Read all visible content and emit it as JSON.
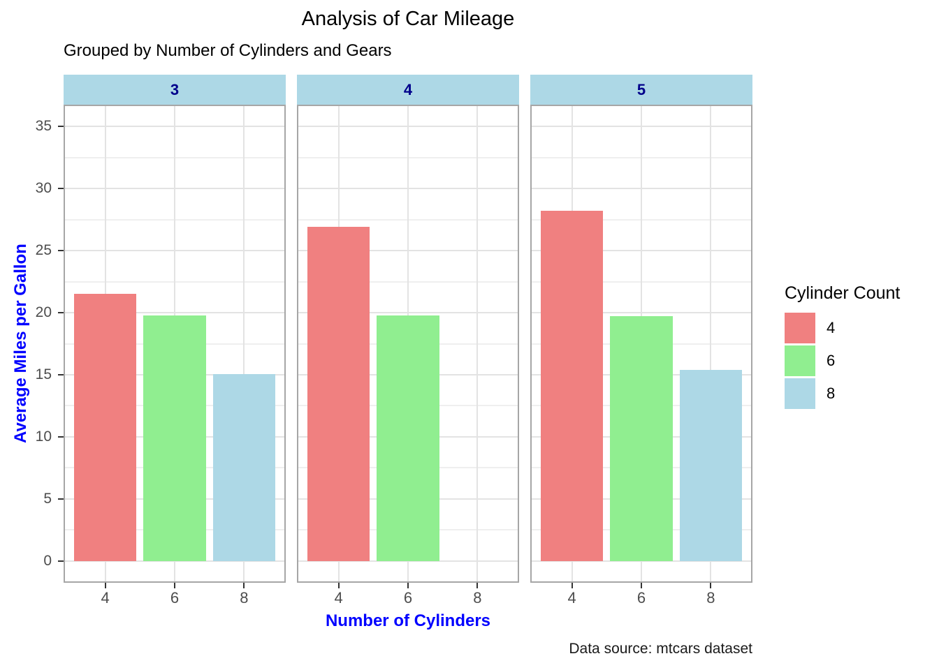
{
  "chart_data": {
    "type": "bar",
    "title": "Analysis of Car Mileage",
    "subtitle": "Grouped by Number of Cylinders and Gears",
    "caption": "Data source: mtcars dataset",
    "xlabel": "Number of Cylinders",
    "ylabel": "Average Miles per Gallon",
    "facet_labels": [
      "3",
      "4",
      "5"
    ],
    "categories": [
      "4",
      "6",
      "8"
    ],
    "series": [
      {
        "facet": "3",
        "values": [
          21.5,
          19.75,
          15.05
        ]
      },
      {
        "facet": "4",
        "values": [
          26.925,
          19.75,
          null
        ]
      },
      {
        "facet": "5",
        "values": [
          28.2,
          19.7,
          15.4
        ]
      }
    ],
    "y_ticks": [
      0,
      5,
      10,
      15,
      20,
      25,
      30,
      35
    ],
    "y_minor_ticks": [
      2.5,
      7.5,
      12.5,
      17.5,
      22.5,
      27.5,
      32.5
    ],
    "ylim": [
      -1.75,
      36.75
    ],
    "legend": {
      "title": "Cylinder Count",
      "entries": [
        {
          "label": "4",
          "color": "#F08080"
        },
        {
          "label": "6",
          "color": "#90EE90"
        },
        {
          "label": "8",
          "color": "#ADD8E6"
        }
      ]
    },
    "colors": {
      "bar_4": "#F08080",
      "bar_6": "#90EE90",
      "bar_8": "#ADD8E6",
      "strip_bg": "#ADD8E6",
      "strip_text": "#00008B",
      "axis_title": "#0000FF",
      "tick_label": "#4D4D4D",
      "grid_major": "#E3E3E3",
      "grid_minor": "#EFEFEF",
      "panel_border": "#A6A6A6",
      "tick_mark": "#333333"
    }
  }
}
